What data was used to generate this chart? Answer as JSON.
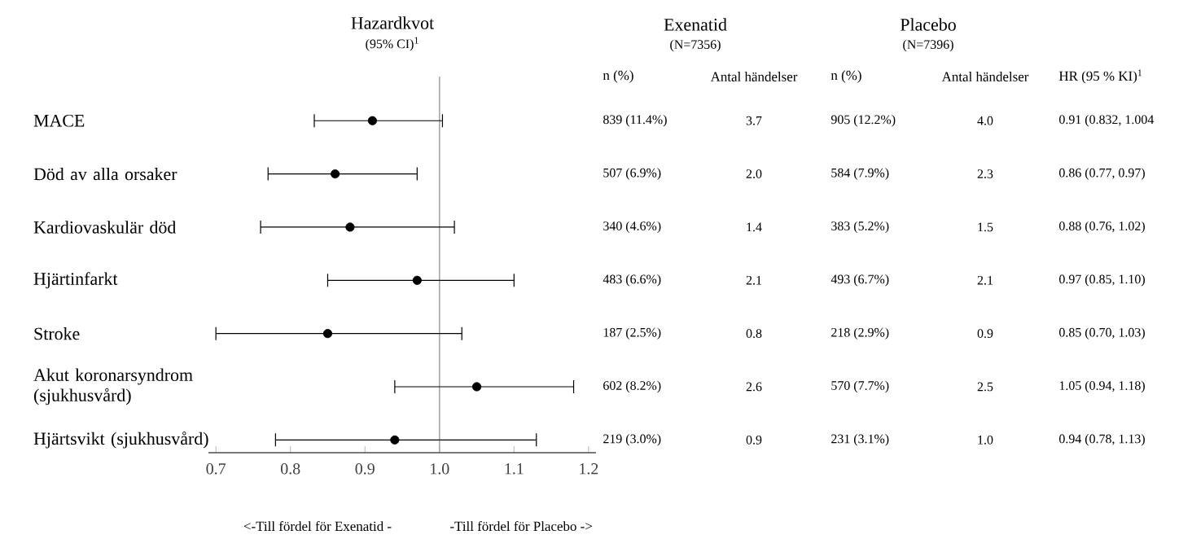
{
  "chart_data": {
    "type": "scatter",
    "orientation": "horizontal",
    "title": "Hazardkvot",
    "subtitle": "(95% CI)$^{1}$",
    "categories": [
      "MACE",
      "Död av alla orsaker",
      "Kardiovaskulär död",
      "Hjärtinfarkt",
      "Stroke",
      "Akut koronarsyndrom (sjukhusvård)",
      "Hjärtsvikt (sjukhusvård)"
    ],
    "series": [
      {
        "color": "#000000",
        "values": [
          0.91,
          0.86,
          0.88,
          0.97,
          0.85,
          1.05,
          0.94
        ],
        "errors": [
          [
            0.832,
            1.004
          ],
          [
            0.77,
            0.97
          ],
          [
            0.76,
            1.02
          ],
          [
            0.85,
            1.1
          ],
          [
            0.7,
            1.03
          ],
          [
            0.94,
            1.18
          ],
          [
            0.78,
            1.13
          ]
        ]
      }
    ],
    "marker": "circle",
    "xlim": [
      0.69,
      1.21
    ],
    "xticks": [
      0.7,
      0.8,
      0.9,
      {
        "value": 1.0,
        "label": "1.0"
      },
      1.1,
      1.2
    ],
    "ref_lines": [
      {
        "axis": "x",
        "value": 1.0,
        "color": "#a6a6a6"
      }
    ],
    "annotations": [
      "Exenatid",
      "(N=7356)",
      "Placebo",
      "(N=7396)",
      "n (%)",
      "Antal händelser",
      "n (%)",
      "Antal händelser",
      "HR (95 % KI)$^{1}$",
      "839 (11.4%)",
      "3.7",
      "905 (12.2%)",
      "4.0",
      "0.91 (0.832, 1.004",
      "507 (6.9%)",
      "2.0",
      "584 (7.9%)",
      "2.3",
      "0.86 (0.77, 0.97)",
      "340 (4.6%)",
      "1.4",
      "383 (5.2%)",
      "1.5",
      "0.88 (0.76, 1.02)",
      "483 (6.6%)",
      "2.1",
      "493 (6.7%)",
      "2.1",
      "0.97 (0.85, 1.10)",
      "187 (2.5%)",
      "0.8",
      "218 (2.9%)",
      "0.9",
      "0.85 (0.70, 1.03)",
      "602 (8.2%)",
      "2.6",
      "570 (7.7%)",
      "2.5",
      "1.05 (0.94, 1.18)",
      "219 (3.0%)",
      "0.9",
      "231 (3.1%)",
      "1.0",
      "0.94 (0.78, 1.13)",
      "<-Till fördel för Exenatid -",
      "-Till fördel för Placebo ->"
    ]
  }
}
